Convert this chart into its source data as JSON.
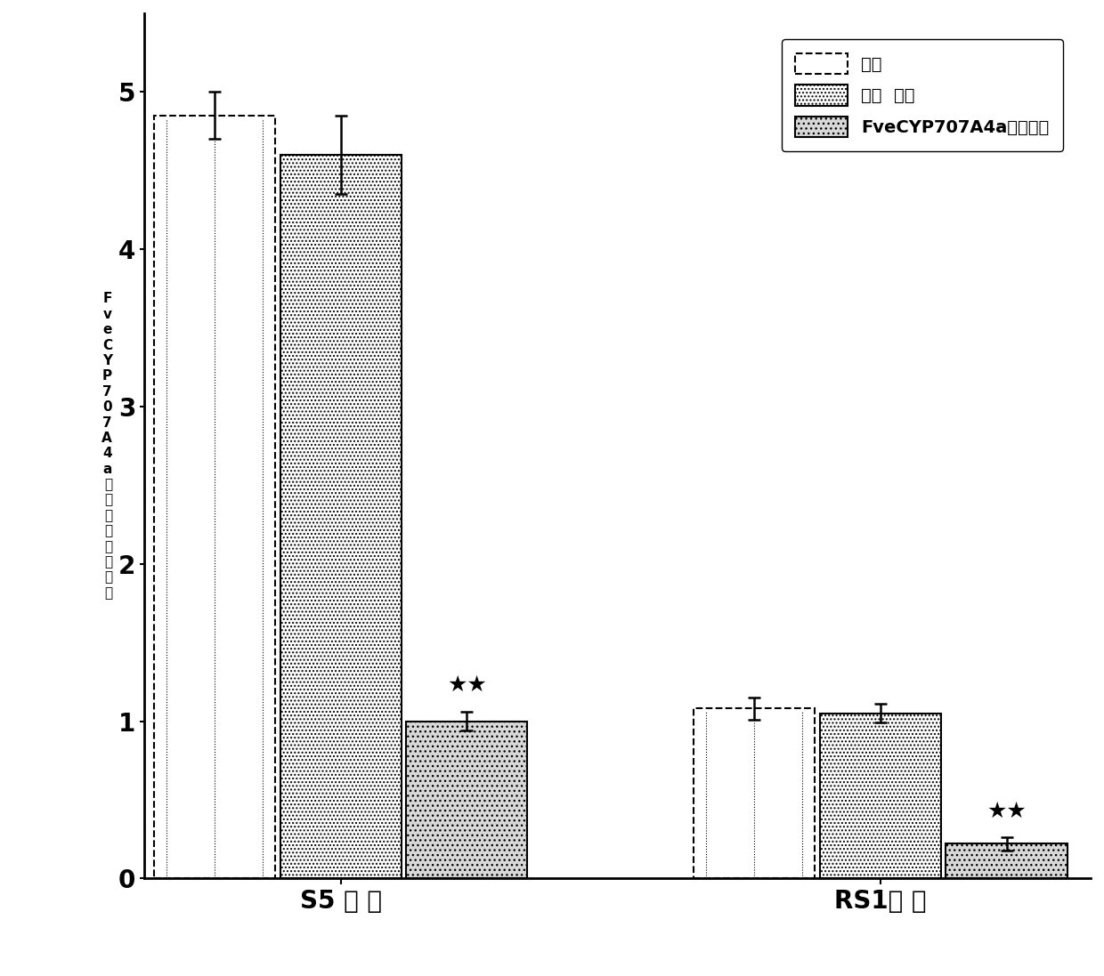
{
  "groups": [
    "S5 时 期",
    "RS1时 期"
  ],
  "categories": [
    "对照",
    "空白  载控",
    "FveCYP707A4a基因干扰"
  ],
  "values": {
    "S5 时 期": [
      4.85,
      4.6,
      1.0
    ],
    "RS1时 期": [
      1.08,
      1.05,
      0.22
    ]
  },
  "errors": {
    "S5 时 期": [
      0.15,
      0.25,
      0.06
    ],
    "RS1时 期": [
      0.07,
      0.06,
      0.04
    ]
  },
  "bar_width": 0.18,
  "ylim": [
    0,
    5.5
  ],
  "yticks": [
    0,
    1,
    2,
    3,
    4,
    5
  ],
  "ylabel": "FveCYP707A4a基因相对表达水平",
  "significance": {
    "S5 时 期": [
      false,
      false,
      true
    ],
    "RS1时 期": [
      false,
      false,
      true
    ]
  },
  "group_centers": [
    0.38,
    1.15
  ],
  "background_color": "#ffffff",
  "legend_labels": [
    "对照",
    "空白  载控",
    "FveCYP707A4a基因干扰"
  ],
  "xtick_labels": [
    "S5 时 期",
    "RS1时 期"
  ]
}
